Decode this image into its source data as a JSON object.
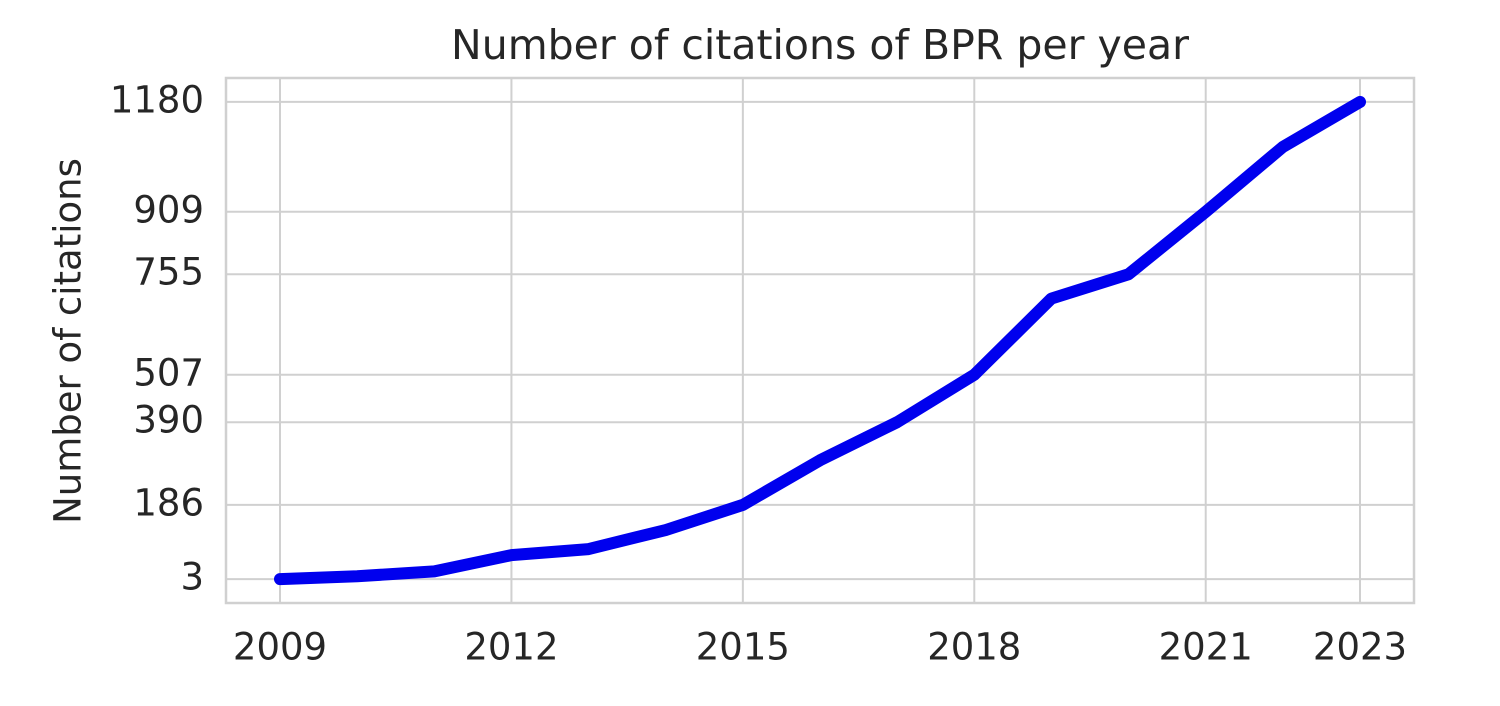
{
  "chart_data": {
    "type": "line",
    "title": "Number of citations of BPR per year",
    "y_label": "Number of citations",
    "x": [
      2009,
      2010,
      2011,
      2012,
      2013,
      2014,
      2015,
      2016,
      2017,
      2018,
      2019,
      2020,
      2021,
      2022,
      2023
    ],
    "series": [
      {
        "name": "BPR",
        "color": "#0000ee",
        "values": [
          3,
          10,
          22,
          62,
          77,
          124,
          186,
          296,
          390,
          507,
          695,
          755,
          909,
          1069,
          1180
        ]
      }
    ],
    "xlim": [
      2008.3,
      2023.7
    ],
    "xticks": [
      2009,
      2012,
      2015,
      2018,
      2021,
      2023
    ],
    "ylim": [
      -56,
      1239
    ],
    "yticks": [
      3,
      186,
      390,
      507,
      755,
      909,
      1180
    ],
    "grid": true
  }
}
